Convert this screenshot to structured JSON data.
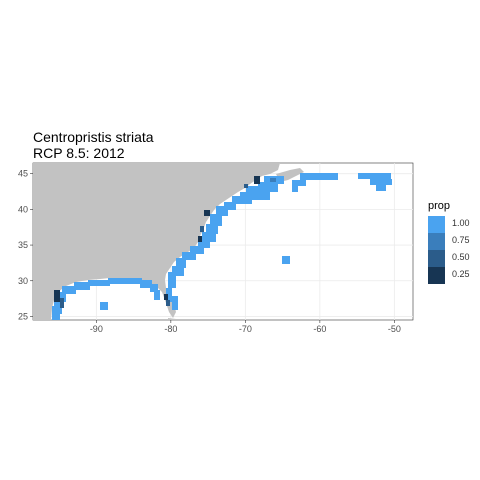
{
  "title": {
    "line1": "Centropristis striata",
    "line2": "RCP 8.5: 2012"
  },
  "map_data": {
    "type": "map",
    "region": "Eastern US Atlantic coast and Gulf of Mexico",
    "xlim": [
      -98.5,
      -47.5
    ],
    "ylim": [
      24.5,
      46.5
    ],
    "x_ticks": [
      -90,
      -80,
      -70,
      -60,
      -50
    ],
    "x_tick_labels": [
      "-90",
      "-80",
      "-70",
      "-60",
      "-50"
    ],
    "y_ticks": [
      25,
      30,
      35,
      40,
      45
    ],
    "y_tick_labels": [
      "25",
      "30",
      "35",
      "40",
      "45"
    ],
    "land_color": "#c2c2c2",
    "cell_color_max": "#4aa3f0",
    "grid": true,
    "legend": {
      "title": "prop",
      "position": "right",
      "entries": [
        {
          "label": "1.00",
          "color": "#4aa3f0"
        },
        {
          "label": "0.75",
          "color": "#3a7ebc"
        },
        {
          "label": "0.50",
          "color": "#2b5c8a"
        },
        {
          "label": "0.25",
          "color": "#173553"
        }
      ]
    }
  }
}
